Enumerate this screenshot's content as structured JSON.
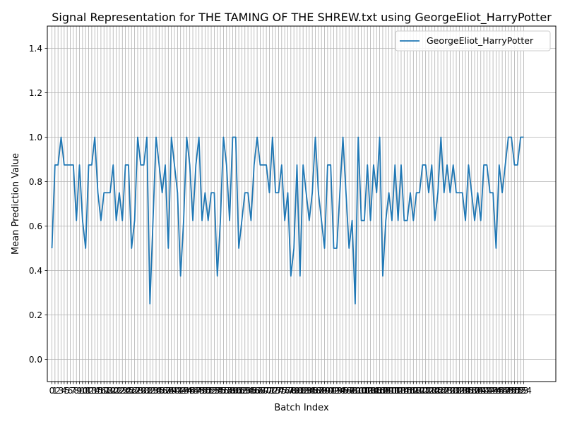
{
  "chart_data": {
    "type": "line",
    "title": "Signal Representation for THE TAMING OF THE SHREW.txt using GeorgeEliot_HarryPotter",
    "xlabel": "Batch Index",
    "ylabel": "Mean Prediction Value",
    "xlim": [
      -1.5,
      164.5
    ],
    "ylim": [
      -0.1,
      1.5
    ],
    "yticks": [
      0.0,
      0.2,
      0.4,
      0.6,
      0.8,
      1.0,
      1.2,
      1.4
    ],
    "grid": true,
    "legend_position": "top-right",
    "line_color": "#1f77b4",
    "series": [
      {
        "name": "GeorgeEliot_HarryPotter",
        "values": [
          0.5,
          0.875,
          0.875,
          1.0,
          0.875,
          0.875,
          0.875,
          0.875,
          0.625,
          0.875,
          0.625,
          0.5,
          0.875,
          0.875,
          1.0,
          0.75,
          0.625,
          0.75,
          0.75,
          0.75,
          0.875,
          0.625,
          0.75,
          0.625,
          0.875,
          0.875,
          0.5,
          0.625,
          1.0,
          0.875,
          0.875,
          1.0,
          0.25,
          0.625,
          1.0,
          0.875,
          0.75,
          0.875,
          0.5,
          1.0,
          0.875,
          0.75,
          0.375,
          0.625,
          1.0,
          0.875,
          0.625,
          0.875,
          1.0,
          0.625,
          0.75,
          0.625,
          0.75,
          0.75,
          0.375,
          0.625,
          1.0,
          0.875,
          0.625,
          1.0,
          1.0,
          0.5,
          0.625,
          0.75,
          0.75,
          0.625,
          0.875,
          1.0,
          0.875,
          0.875,
          0.875,
          0.75,
          1.0,
          0.75,
          0.75,
          0.875,
          0.625,
          0.75,
          0.375,
          0.5,
          0.875,
          0.375,
          0.875,
          0.75,
          0.625,
          0.75,
          1.0,
          0.75,
          0.625,
          0.5,
          0.875,
          0.875,
          0.5,
          0.5,
          0.75,
          1.0,
          0.75,
          0.5,
          0.625,
          0.25,
          1.0,
          0.625,
          0.625,
          0.875,
          0.625,
          0.875,
          0.75,
          1.0,
          0.375,
          0.625,
          0.75,
          0.625,
          0.875,
          0.625,
          0.875,
          0.625,
          0.625,
          0.75,
          0.625,
          0.75,
          0.75,
          0.875,
          0.875,
          0.75,
          0.875,
          0.625,
          0.75,
          1.0,
          0.75,
          0.875,
          0.75,
          0.875,
          0.75,
          0.75,
          0.75,
          0.625,
          0.875,
          0.75,
          0.625,
          0.75,
          0.625,
          0.875,
          0.875,
          0.75,
          0.75,
          0.5,
          0.875,
          0.75,
          0.875,
          1.0,
          1.0,
          0.875,
          0.875,
          1.0,
          1.0
        ]
      }
    ]
  }
}
